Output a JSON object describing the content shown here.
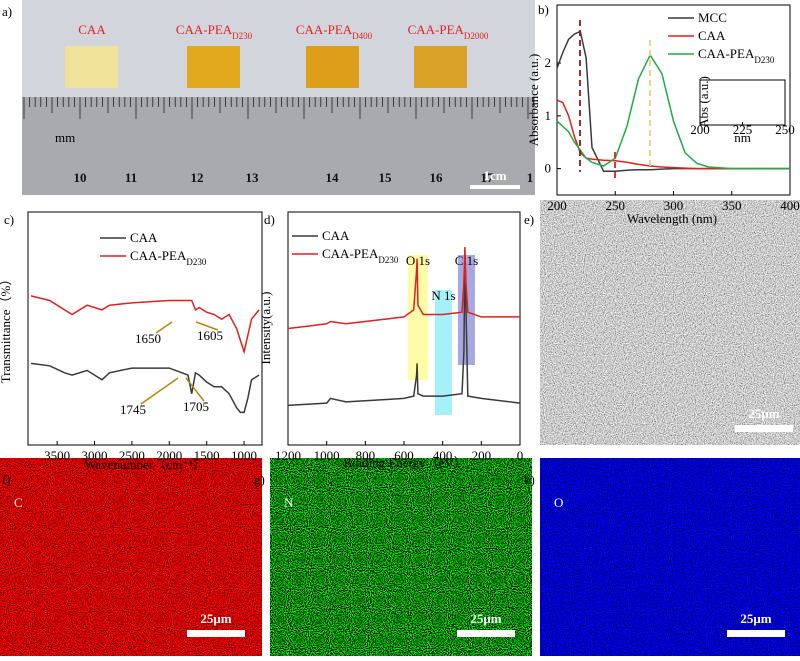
{
  "photo": {
    "label": "a)",
    "samples": [
      {
        "text": "CAA"
      },
      {
        "text": "CAA-PEA",
        "sub": "D230"
      },
      {
        "text": "CAA-PEA",
        "sub": "D400"
      },
      {
        "text": "CAA-PEA",
        "sub": "D2000"
      }
    ],
    "ruler_unit": "mm",
    "ruler_numbers": [
      "10",
      "11",
      "12",
      "13",
      "14",
      "15",
      "16",
      "17",
      "1"
    ],
    "scale_bar": "1cm"
  },
  "chart_data": [
    {
      "type": "line",
      "label": "b)",
      "x_label": "Wavelength (nm)",
      "y_label": "Absorbance (a.u.)",
      "x": [
        200,
        205,
        210,
        215,
        220,
        225,
        230,
        240,
        250,
        260,
        270,
        280,
        290,
        300,
        310,
        320,
        330,
        350,
        400
      ],
      "xlim": [
        200,
        400
      ],
      "xticks": [
        200,
        250,
        300,
        350,
        400
      ],
      "ylim": [
        -0.5,
        3.1
      ],
      "yticks": [
        0,
        1,
        2
      ],
      "series": [
        {
          "name": "MCC",
          "color": "#3a3a3a",
          "values": [
            1.9,
            2.2,
            2.45,
            2.55,
            2.6,
            2.1,
            0.4,
            -0.05,
            -0.05,
            -0.03,
            -0.02,
            -0.02,
            -0.01,
            0,
            0,
            0,
            0,
            0,
            0
          ]
        },
        {
          "name": "CAA",
          "color": "#e02020",
          "values": [
            1.3,
            1.25,
            1.0,
            0.6,
            0.3,
            0.2,
            0.18,
            0.16,
            0.15,
            0.12,
            0.08,
            0.05,
            0.03,
            0.02,
            0.01,
            0,
            0,
            0,
            0
          ]
        },
        {
          "name": "CAA-PEA",
          "name_sub": "D230",
          "color": "#22aa44",
          "values": [
            0.9,
            0.8,
            0.7,
            0.5,
            0.35,
            0.2,
            0.12,
            0.05,
            0.2,
            0.8,
            1.7,
            2.15,
            1.8,
            0.9,
            0.3,
            0.1,
            0.03,
            0,
            0
          ]
        }
      ],
      "inset": {
        "x_label": "nm",
        "y_label": "Abs (a.u.)",
        "xticks": [
          200,
          225,
          250
        ]
      }
    },
    {
      "type": "line",
      "label": "c)",
      "x_label": "Wavenumber（cm⁻¹）",
      "y_label": "Transmittance（%）",
      "x": [
        3850,
        3600,
        3400,
        3300,
        3100,
        2900,
        2800,
        2500,
        2000,
        1750,
        1700,
        1650,
        1600,
        1500,
        1400,
        1300,
        1200,
        1100,
        1050,
        1000,
        950,
        900,
        800
      ],
      "xlim": [
        3890,
        760
      ],
      "xticks": [
        3500,
        3000,
        2500,
        2000,
        1500,
        1000
      ],
      "ylim": [
        0,
        100
      ],
      "series": [
        {
          "name": "CAA",
          "color": "#3a3a3a",
          "values": [
            35,
            34,
            31,
            30,
            32,
            28,
            31,
            33,
            33,
            30,
            22,
            31,
            30,
            27,
            25,
            25,
            22,
            16,
            14,
            14,
            20,
            28,
            30
          ]
        },
        {
          "name": "CAA-PEA",
          "name_sub": "D230",
          "color": "#e02020",
          "values": [
            64,
            62,
            58,
            56,
            60,
            58,
            60,
            61,
            62,
            62,
            62,
            58,
            59,
            57,
            56,
            54,
            56,
            50,
            45,
            40,
            47,
            54,
            58
          ]
        }
      ],
      "annotations": [
        "1650",
        "1605",
        "1745",
        "1705"
      ]
    },
    {
      "type": "line",
      "label": "d)",
      "x_label": "Binding Energy（eV）",
      "y_label": "Intensity(a.u.)",
      "x": [
        1200,
        1100,
        1000,
        980,
        900,
        800,
        700,
        600,
        550,
        535,
        532,
        528,
        500,
        420,
        400,
        300,
        290,
        285,
        280,
        270,
        200,
        100,
        0
      ],
      "xlim": [
        1200,
        0
      ],
      "xticks": [
        1200,
        1000,
        800,
        600,
        400,
        200,
        0
      ],
      "ylim": [
        0,
        100
      ],
      "series": [
        {
          "name": "CAA",
          "color": "#3a3a3a",
          "values": [
            17,
            17.5,
            18,
            20,
            18.5,
            19,
            19.5,
            20,
            21,
            30,
            35,
            22,
            21,
            21,
            21,
            22,
            40,
            82,
            60,
            21,
            20,
            19,
            18
          ]
        },
        {
          "name": "CAA-PEA",
          "name_sub": "D230",
          "color": "#e02020",
          "values": [
            50,
            51,
            52,
            53,
            52,
            53,
            54,
            55,
            58,
            75,
            80,
            60,
            56,
            56,
            56,
            57,
            70,
            85,
            70,
            57,
            55,
            55,
            55
          ]
        }
      ],
      "bands": [
        {
          "label": "O 1s",
          "from": 580,
          "to": 476
        },
        {
          "label": "N 1s",
          "from": 440,
          "to": 352
        },
        {
          "label": "C 1s",
          "from": 321,
          "to": 233
        }
      ]
    }
  ],
  "sem": {
    "label": "e)",
    "scale_bar": "25μm"
  },
  "maps": [
    {
      "label": "f)",
      "element": "C",
      "scale_bar": "25μm"
    },
    {
      "label": "g)",
      "element": "N",
      "scale_bar": "25μm"
    },
    {
      "label": "h)",
      "element": "O",
      "scale_bar": "25μm"
    }
  ]
}
